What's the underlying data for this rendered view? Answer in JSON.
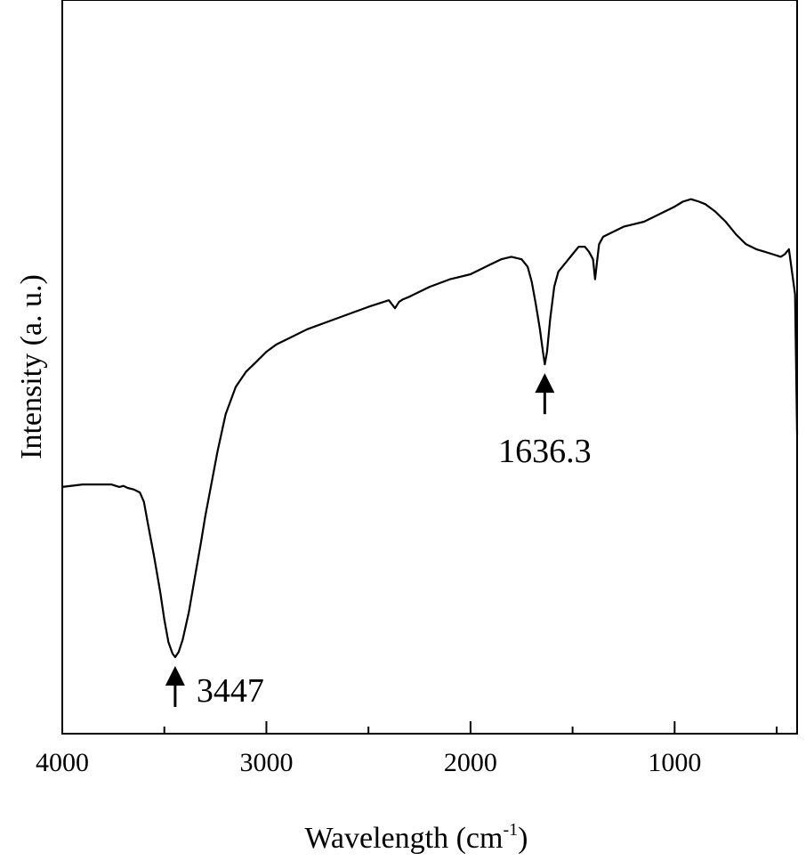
{
  "chart_data": {
    "type": "line",
    "title": "",
    "xlabel_main": "Wavelength (cm",
    "xlabel_sup": "-1",
    "xlabel_close": ")",
    "ylabel": "Intensity (a. u.)",
    "xlim": [
      4000,
      400
    ],
    "x_reversed": true,
    "ylim": [
      0,
      100
    ],
    "y_ticks_shown": false,
    "grid": false,
    "legend": "none",
    "x_ticks": [
      4000,
      3000,
      2000,
      1000
    ],
    "x_tick_labels": [
      "4000",
      "3000",
      "2000",
      "1000"
    ],
    "series": [
      {
        "line_color": "#000000",
        "x": [
          4000,
          3900,
          3820,
          3760,
          3720,
          3700,
          3680,
          3650,
          3620,
          3600,
          3580,
          3550,
          3520,
          3500,
          3480,
          3460,
          3447,
          3430,
          3410,
          3380,
          3350,
          3320,
          3300,
          3270,
          3240,
          3200,
          3150,
          3100,
          3050,
          3000,
          2950,
          2900,
          2800,
          2700,
          2600,
          2500,
          2400,
          2370,
          2350,
          2330,
          2300,
          2200,
          2100,
          2000,
          1900,
          1850,
          1800,
          1750,
          1720,
          1700,
          1680,
          1660,
          1645,
          1636,
          1625,
          1610,
          1590,
          1570,
          1540,
          1500,
          1470,
          1440,
          1420,
          1400,
          1390,
          1380,
          1370,
          1350,
          1300,
          1250,
          1200,
          1150,
          1100,
          1050,
          1000,
          960,
          920,
          880,
          850,
          800,
          750,
          700,
          650,
          600,
          560,
          520,
          480,
          460,
          440,
          430,
          420,
          410,
          400
        ],
        "y": [
          36.5,
          37,
          37,
          37,
          36.5,
          36.7,
          36.3,
          36,
          35.4,
          33.5,
          29,
          22.5,
          15.5,
          10,
          5.5,
          3.2,
          2.5,
          3.5,
          6,
          11.5,
          18.5,
          25.5,
          30.5,
          37,
          43.5,
          51,
          56.5,
          59.5,
          61.5,
          63.5,
          65,
          66,
          68,
          69.5,
          71,
          72.5,
          73.8,
          72.2,
          73.5,
          74,
          74.5,
          76.5,
          78,
          79,
          81,
          82,
          82.5,
          82,
          80.5,
          77.5,
          73,
          68,
          63.5,
          61,
          63.5,
          70,
          76.5,
          79.5,
          81,
          83,
          84.5,
          84.5,
          83.5,
          82,
          78,
          81.5,
          85,
          86.5,
          87.5,
          88.5,
          89,
          89.5,
          90.5,
          91.5,
          92.5,
          93.5,
          94,
          93.5,
          93,
          91.5,
          89.5,
          87,
          85,
          84,
          83.5,
          83,
          82.5,
          83,
          84,
          81,
          78,
          75,
          47
        ]
      }
    ],
    "annotations": [
      {
        "label": "3447",
        "x": 3447,
        "y": 2.5
      },
      {
        "label": "1636.3",
        "x": 1636.3,
        "y": 61
      }
    ]
  }
}
